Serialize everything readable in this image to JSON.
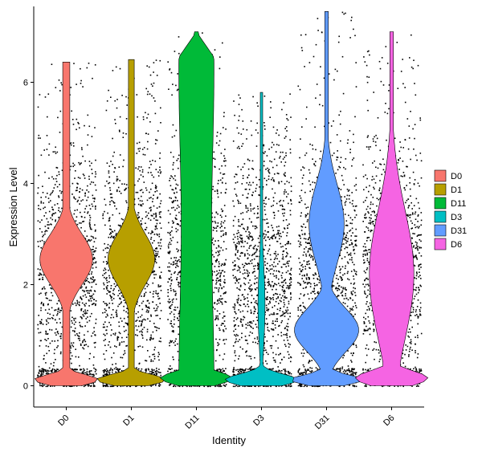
{
  "chart_data": {
    "type": "violin",
    "title": "",
    "xlabel": "Identity",
    "ylabel": "Expression Level",
    "ylim": [
      -0.42,
      7.5
    ],
    "yticks": [
      0,
      2,
      4,
      6
    ],
    "categories": [
      "D0",
      "D1",
      "D11",
      "D3",
      "D31",
      "D6"
    ],
    "colors": [
      "#F8766D",
      "#B79F00",
      "#00BA38",
      "#00BFC4",
      "#619CFF",
      "#F564E3"
    ],
    "max_values": [
      6.4,
      6.45,
      7.0,
      5.8,
      7.4,
      7.0
    ],
    "legend": {
      "position": "right",
      "entries": [
        "D0",
        "D1",
        "D11",
        "D3",
        "D31",
        "D6"
      ]
    },
    "point_color": "#000000",
    "grid": false
  }
}
